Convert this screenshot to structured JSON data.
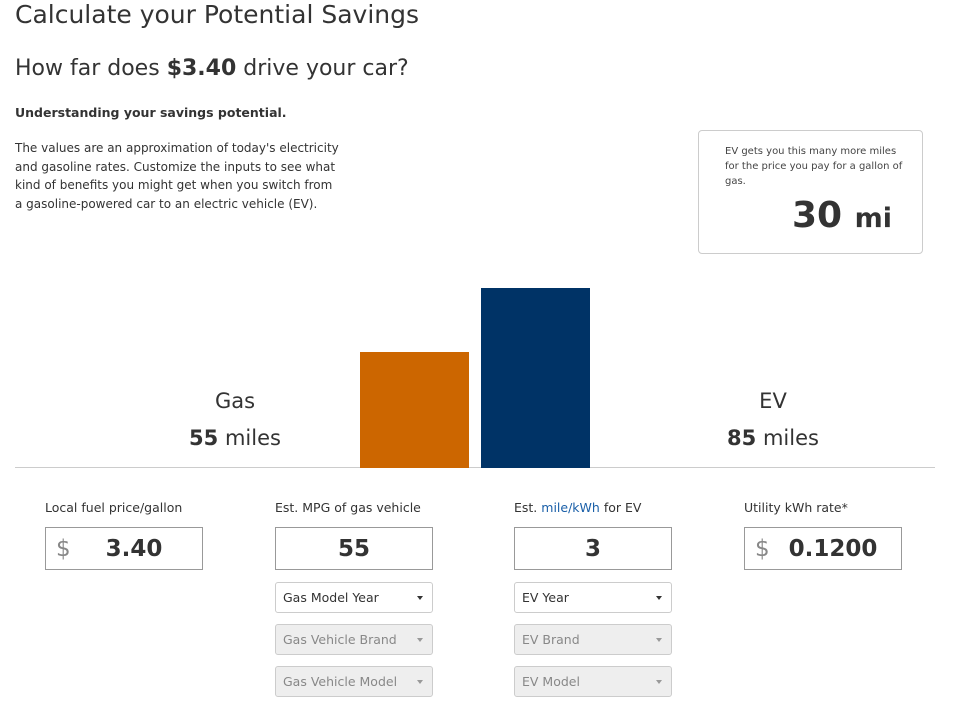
{
  "header": {
    "title": "Calculate your Potential Savings",
    "question": {
      "before": "How far does",
      "price": "$3.40",
      "after": "drive your car?"
    }
  },
  "intro": {
    "heading": "Understanding your savings potential.",
    "body": "The values are an approximation of today's electricity and gasoline rates. Customize the inputs to see what kind of benefits you might get when you switch from a gasoline-powered car to an electric vehicle (EV)."
  },
  "callout": {
    "text": "EV gets you this many more miles for the price you pay for a gallon of gas.",
    "value": 30,
    "unit": "mi"
  },
  "chart_data": {
    "type": "bar",
    "categories": [
      "Gas",
      "EV"
    ],
    "values": [
      55,
      85
    ],
    "colors": [
      "#cc6600",
      "#003366"
    ],
    "unit": "miles",
    "ylim": [
      0,
      85
    ]
  },
  "form": {
    "fields": [
      {
        "label": "Local fuel price/gallon",
        "prefix": "$",
        "value": "3.40",
        "selects": []
      },
      {
        "label": "Est. MPG of gas vehicle",
        "value": "55",
        "selects": [
          {
            "text": "Gas Model Year",
            "disabled": false
          },
          {
            "text": "Gas Vehicle Brand",
            "disabled": true
          },
          {
            "text": "Gas Vehicle Model",
            "disabled": true
          }
        ]
      },
      {
        "label": "Est.",
        "link": "mile/kWh",
        "label_end": "for EV",
        "value": "3",
        "selects": [
          {
            "text": "EV Year",
            "disabled": false
          },
          {
            "text": "EV Brand",
            "disabled": true
          },
          {
            "text": "EV Model",
            "disabled": true
          }
        ]
      },
      {
        "label": "Utility kWh rate*",
        "prefix": "$",
        "value": "0.1200",
        "selects": []
      }
    ]
  }
}
